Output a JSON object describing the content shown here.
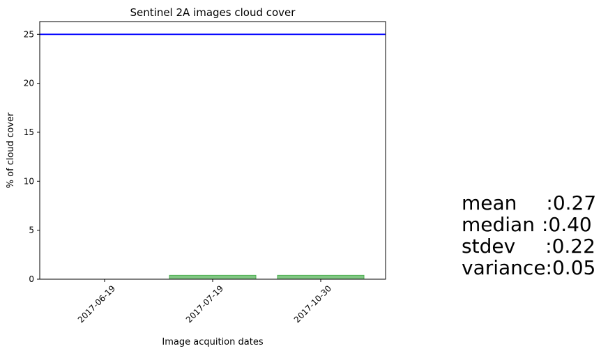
{
  "chart_data": {
    "type": "bar",
    "title": "Sentinel 2A images cloud cover",
    "xlabel": "Image acquition dates",
    "ylabel": "% of cloud cover",
    "categories": [
      "2017-06-19",
      "2017-07-19",
      "2017-10-30"
    ],
    "values": [
      0.0,
      0.4,
      0.4
    ],
    "ylim": [
      0,
      26.3
    ],
    "yticks": [
      "0",
      "5",
      "10",
      "15",
      "20",
      "25"
    ],
    "bar_color": "#4caf50",
    "threshold_line": {
      "value": 25,
      "color": "#0000ff"
    },
    "grid": false
  },
  "stats": [
    {
      "label": "mean",
      "value": ":0.27"
    },
    {
      "label": "median",
      "value": ":0.40"
    },
    {
      "label": "stdev",
      "value": ":0.22"
    },
    {
      "label": "variance",
      "value": ":0.05"
    }
  ]
}
